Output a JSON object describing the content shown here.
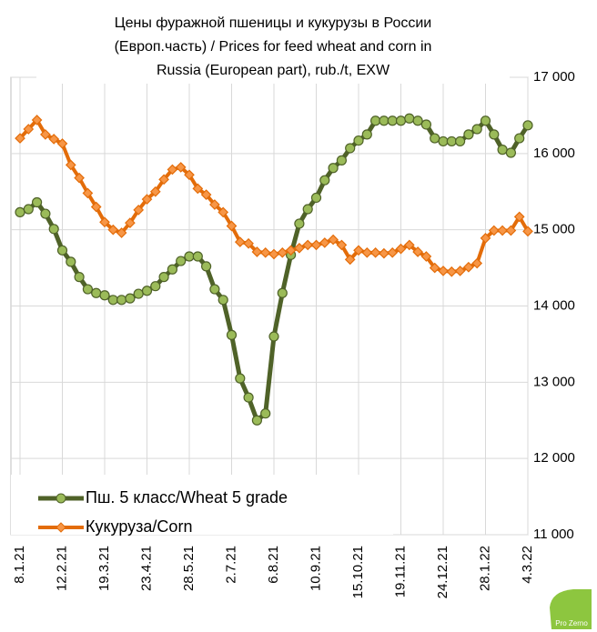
{
  "chart_data": {
    "type": "line",
    "title": [
      "Цены фуражной пшеницы и кукурузы в России",
      "(Европ.часть) / Prices for feed wheat and corn in",
      "Russia (European part), rub./t, EXW"
    ],
    "categories": [
      "8.1.21",
      null,
      null,
      null,
      null,
      "12.2.21",
      null,
      null,
      null,
      null,
      "19.3.21",
      null,
      null,
      null,
      null,
      "23.4.21",
      null,
      null,
      null,
      null,
      "28.5.21",
      null,
      null,
      null,
      null,
      "2.7.21",
      null,
      null,
      null,
      null,
      "6.8.21",
      null,
      null,
      null,
      null,
      "10.9.21",
      null,
      null,
      null,
      null,
      "15.10.21",
      null,
      null,
      null,
      null,
      "19.11.21",
      null,
      null,
      null,
      null,
      "24.12.21",
      null,
      null,
      null,
      null,
      "28.1.22",
      null,
      null,
      null,
      null,
      "4.3.22"
    ],
    "series": [
      {
        "name": "Пш. 5 класс/Wheat 5 grade",
        "color": "#4f6228",
        "marker_color": "#9bbb59",
        "values": [
          15230,
          15270,
          15360,
          15210,
          15010,
          14730,
          14580,
          14380,
          14220,
          14170,
          14140,
          14080,
          14080,
          14100,
          14160,
          14200,
          14260,
          14380,
          14480,
          14590,
          14650,
          14650,
          14520,
          14220,
          14080,
          13620,
          13050,
          12800,
          12500,
          12590,
          13600,
          14170,
          14670,
          15080,
          15270,
          15420,
          15650,
          15810,
          15910,
          16070,
          16170,
          16250,
          16430,
          16430,
          16430,
          16430,
          16460,
          16430,
          16380,
          16200,
          16160,
          16160,
          16160,
          16250,
          16320,
          16430,
          16250,
          16050,
          16010,
          16200,
          16370
        ]
      },
      {
        "name": "Кукуруза/Corn",
        "color": "#e36c09",
        "marker_color": "#f79646",
        "values": [
          16200,
          16320,
          16440,
          16250,
          16190,
          16130,
          15850,
          15680,
          15480,
          15300,
          15100,
          15000,
          14960,
          15090,
          15260,
          15400,
          15500,
          15660,
          15790,
          15820,
          15720,
          15540,
          15460,
          15330,
          15230,
          15050,
          14840,
          14820,
          14710,
          14700,
          14680,
          14700,
          14730,
          14760,
          14800,
          14800,
          14830,
          14870,
          14800,
          14610,
          14730,
          14700,
          14700,
          14690,
          14700,
          14750,
          14800,
          14710,
          14650,
          14500,
          14460,
          14450,
          14460,
          14510,
          14560,
          14890,
          14990,
          14990,
          14990,
          15170,
          14980
        ]
      }
    ],
    "ylim": [
      11000,
      17000
    ],
    "yticks": [
      {
        "value": 11000,
        "label": "11 000"
      },
      {
        "value": 12000,
        "label": "12 000"
      },
      {
        "value": 13000,
        "label": "13 000"
      },
      {
        "value": 14000,
        "label": "14 000"
      },
      {
        "value": 15000,
        "label": "15 000"
      },
      {
        "value": 16000,
        "label": "16 000"
      },
      {
        "value": 17000,
        "label": "17 000"
      }
    ],
    "grid": true,
    "legend": "lower left",
    "logo": "Pro Zerno"
  }
}
